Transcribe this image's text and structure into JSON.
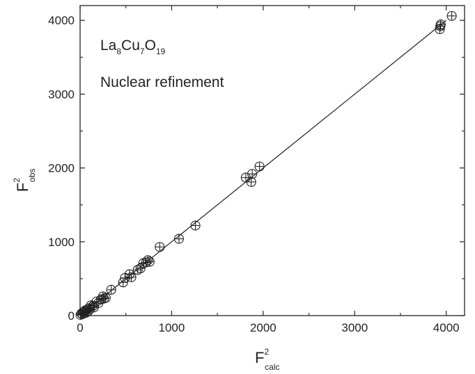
{
  "chart_data": {
    "type": "scatter",
    "title": "",
    "annotations": {
      "compound": {
        "base1": "La",
        "sub1": "8",
        "base2": "Cu",
        "sub2": "7",
        "base3": "O",
        "sub3": "19"
      },
      "note": "Nuclear refinement"
    },
    "xlabel": {
      "base": "F",
      "sup": "2",
      "sub": "calc"
    },
    "ylabel": {
      "base": "F",
      "sup": "2",
      "sub": "obs"
    },
    "xlim": [
      0,
      4200
    ],
    "ylim": [
      0,
      4200
    ],
    "x_ticks": [
      0,
      1000,
      2000,
      3000,
      4000
    ],
    "y_ticks": [
      0,
      1000,
      2000,
      3000,
      4000
    ],
    "x_tick_labels": [
      "0",
      "1000",
      "2000",
      "3000",
      "4000"
    ],
    "y_tick_labels": [
      "0",
      "1000",
      "2000",
      "3000",
      "4000"
    ],
    "grid": false,
    "legend": "none",
    "marker": "circle-with-error-cross",
    "reference_line": {
      "x": [
        0,
        4000
      ],
      "y": [
        0,
        4000
      ]
    },
    "points": [
      [
        5,
        10
      ],
      [
        15,
        30
      ],
      [
        25,
        20
      ],
      [
        35,
        50
      ],
      [
        45,
        30
      ],
      [
        55,
        70
      ],
      [
        65,
        40
      ],
      [
        75,
        80
      ],
      [
        85,
        55
      ],
      [
        95,
        100
      ],
      [
        110,
        90
      ],
      [
        120,
        140
      ],
      [
        140,
        130
      ],
      [
        150,
        110
      ],
      [
        180,
        190
      ],
      [
        200,
        170
      ],
      [
        230,
        220
      ],
      [
        250,
        260
      ],
      [
        260,
        230
      ],
      [
        280,
        240
      ],
      [
        340,
        350
      ],
      [
        470,
        450
      ],
      [
        490,
        510
      ],
      [
        540,
        560
      ],
      [
        560,
        520
      ],
      [
        630,
        620
      ],
      [
        660,
        640
      ],
      [
        690,
        710
      ],
      [
        720,
        720
      ],
      [
        740,
        750
      ],
      [
        760,
        730
      ],
      [
        870,
        930
      ],
      [
        1080,
        1040
      ],
      [
        1260,
        1220
      ],
      [
        1810,
        1870
      ],
      [
        1870,
        1810
      ],
      [
        1880,
        1920
      ],
      [
        1960,
        2020
      ],
      [
        3930,
        3880
      ],
      [
        3935,
        3920
      ],
      [
        3940,
        3945
      ],
      [
        4060,
        4060
      ]
    ],
    "colors": {
      "ink": "#222222",
      "background": "#ffffff"
    }
  }
}
